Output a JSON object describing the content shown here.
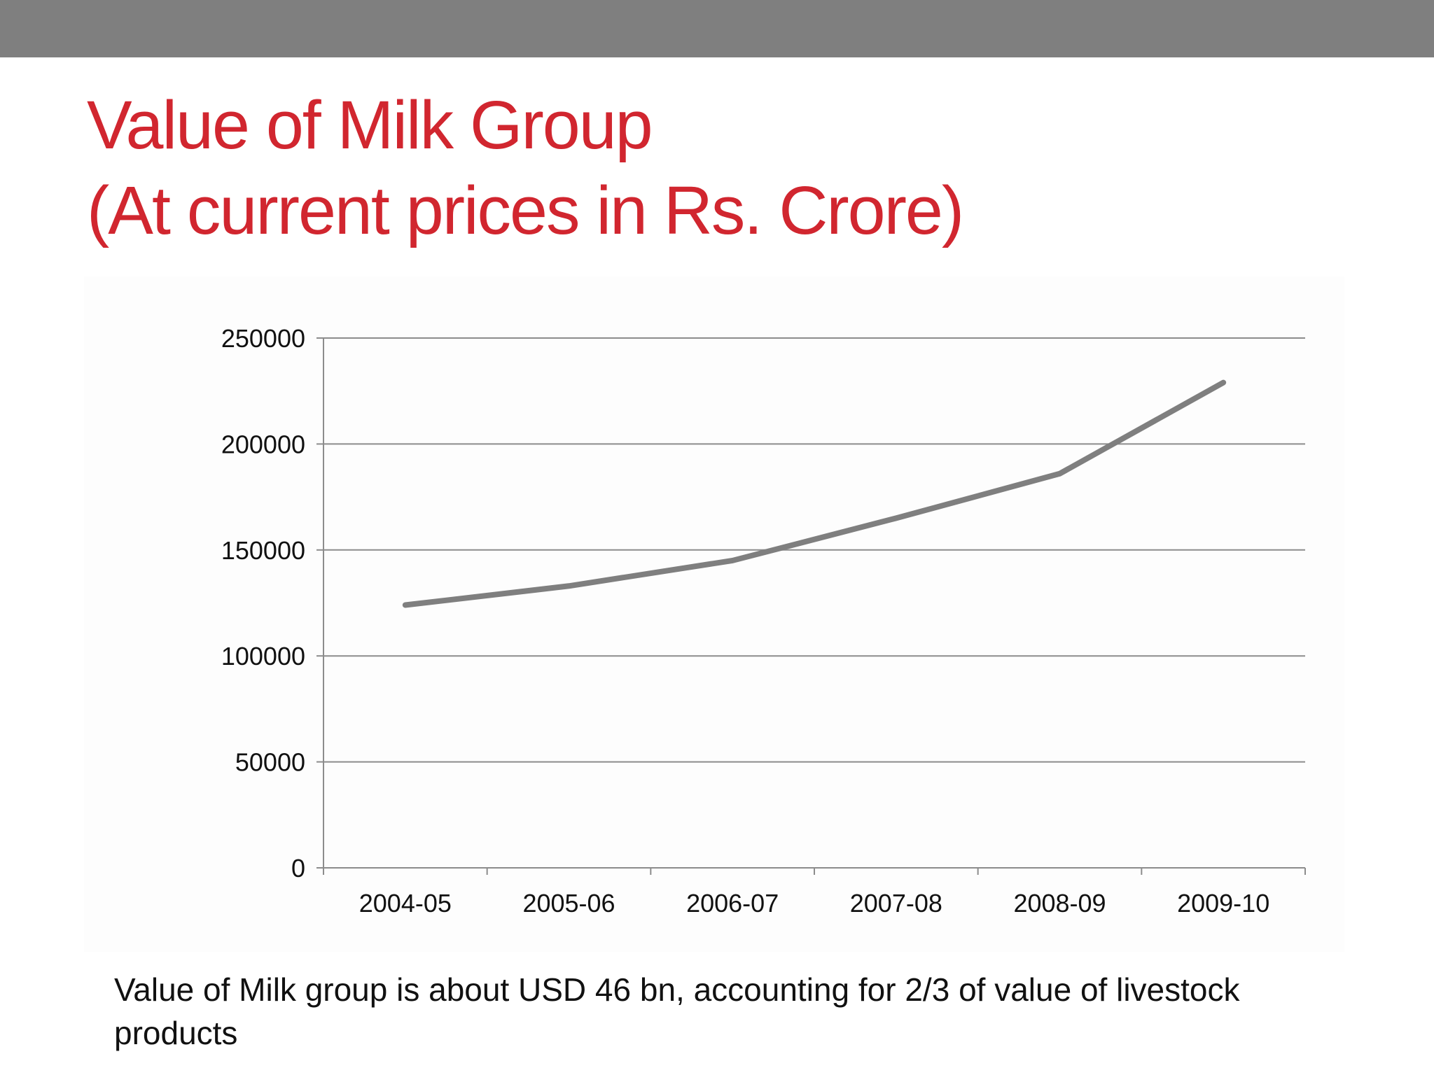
{
  "slide": {
    "title_line1": "Value of Milk Group",
    "title_line2": "(At current prices in Rs. Crore)",
    "caption": "Value of Milk group is about USD 46 bn, accounting for 2/3 of value of livestock products",
    "colors": {
      "title": "#d1262f",
      "top_bar": "#7f7f7f",
      "series": "#7f7f7f",
      "gridline": "#8c8c8c"
    }
  },
  "chart_data": {
    "type": "line",
    "title": "",
    "xlabel": "",
    "ylabel": "",
    "categories": [
      "2004-05",
      "2005-06",
      "2006-07",
      "2007-08",
      "2008-09",
      "2009-10"
    ],
    "series": [
      {
        "values": [
          124000,
          133000,
          145000,
          165000,
          186000,
          229000
        ]
      }
    ],
    "ylim": [
      0,
      250000
    ],
    "yticks": [
      0,
      50000,
      100000,
      150000,
      200000,
      250000
    ],
    "ytick_labels": [
      "0",
      "50000",
      "100000",
      "150000",
      "200000",
      "250000"
    ],
    "grid": true,
    "legend": "none"
  }
}
